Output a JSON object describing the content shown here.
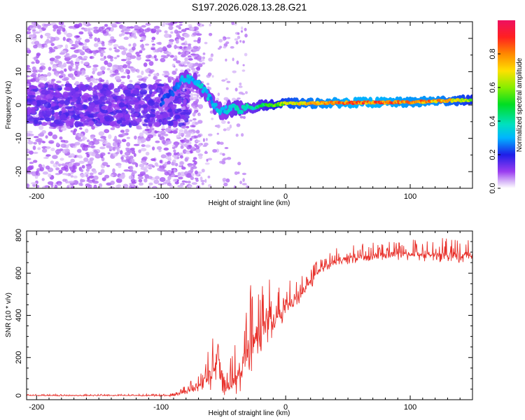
{
  "title": "S197.2026.028.13.28.G21",
  "chart_data": [
    {
      "type": "heatmap",
      "xlabel": "Height of straight line (km)",
      "ylabel": "Frequency (Hz)",
      "xlim": [
        -208,
        150
      ],
      "ylim": [
        -25,
        25
      ],
      "x_ticks": [
        -200,
        -100,
        0,
        100
      ],
      "x_tick_labels": [
        "-200",
        "-100",
        "0",
        "100"
      ],
      "y_ticks": [
        -20,
        -10,
        0,
        10,
        20
      ],
      "y_tick_labels": [
        "-20",
        "-10",
        "0",
        "10",
        "20"
      ],
      "ridge": {
        "x": [
          -208,
          -180,
          -150,
          -120,
          -100,
          -90,
          -85,
          -80,
          -75,
          -70,
          -65,
          -60,
          -55,
          -50,
          -45,
          -40,
          -35,
          -30,
          -25,
          -20,
          -10,
          0,
          20,
          50,
          80,
          100,
          120,
          150
        ],
        "freq": [
          0,
          0,
          0,
          0,
          1,
          4,
          7,
          8,
          7.5,
          6.5,
          4,
          1.5,
          -1.5,
          -2,
          -1,
          -1,
          -1.5,
          -0.5,
          -1,
          0,
          0,
          0.5,
          0.5,
          0.7,
          0.8,
          0.8,
          1.2,
          1.5
        ],
        "amplitude": [
          0.15,
          0.18,
          0.2,
          0.2,
          0.22,
          0.25,
          0.3,
          0.35,
          0.3,
          0.35,
          0.35,
          0.3,
          0.35,
          0.3,
          0.35,
          0.4,
          0.35,
          0.4,
          0.4,
          0.45,
          0.55,
          0.65,
          0.75,
          0.85,
          0.85,
          0.8,
          0.8,
          0.6
        ]
      },
      "colorbar": {
        "label": "Normalized spectral amplitude",
        "range": [
          0,
          1
        ],
        "ticks": [
          0.0,
          0.2,
          0.4,
          0.6,
          0.8
        ],
        "tick_labels": [
          "0.0",
          "0.2",
          "0.4",
          "0.6",
          "0.8"
        ]
      }
    },
    {
      "type": "line",
      "xlabel": "Height of straight line (km)",
      "ylabel": "SNR (10 * v/v)",
      "xlim": [
        -208,
        150
      ],
      "ylim": [
        0,
        800
      ],
      "x_ticks": [
        -200,
        -100,
        0,
        100
      ],
      "x_tick_labels": [
        "-200",
        "-100",
        "0",
        "100"
      ],
      "y_ticks": [
        0,
        200,
        400,
        600,
        800
      ],
      "y_tick_labels": [
        "0",
        "200",
        "400",
        "600",
        "800"
      ],
      "series": [
        {
          "name": "SNR",
          "color": "#e8302a",
          "x": [
            -208,
            -180,
            -150,
            -120,
            -100,
            -90,
            -80,
            -70,
            -60,
            -55,
            -50,
            -45,
            -40,
            -35,
            -30,
            -25,
            -20,
            -15,
            -10,
            -5,
            0,
            10,
            20,
            30,
            40,
            60,
            80,
            100,
            120,
            150
          ],
          "y": [
            20,
            20,
            20,
            20,
            20,
            20,
            40,
            60,
            120,
            200,
            90,
            60,
            100,
            180,
            220,
            300,
            330,
            360,
            380,
            410,
            440,
            480,
            560,
            630,
            660,
            680,
            690,
            690,
            690,
            680
          ],
          "spike_amplitude": [
            5,
            6,
            6,
            6,
            8,
            10,
            30,
            60,
            180,
            240,
            160,
            120,
            200,
            300,
            300,
            280,
            260,
            240,
            200,
            160,
            120,
            100,
            80,
            70,
            60,
            60,
            60,
            70,
            80,
            80
          ]
        }
      ]
    }
  ]
}
